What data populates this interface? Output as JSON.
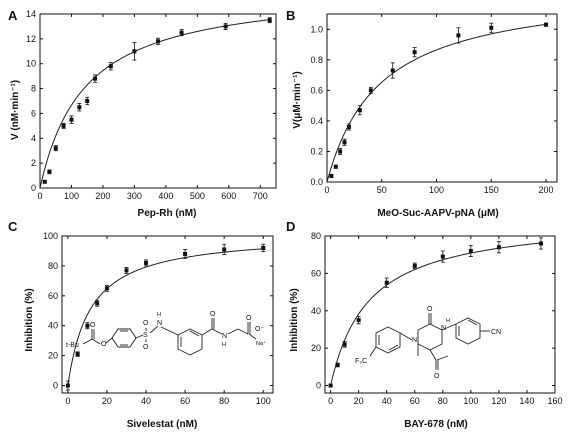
{
  "chart_data": [
    {
      "id": "A",
      "panel_label": "A",
      "type": "scatter",
      "xlabel": "Pep-Rh (nM)",
      "ylabel": "V (nM·min⁻¹)",
      "xlim": [
        0,
        750
      ],
      "ylim": [
        0,
        14
      ],
      "xticks": [
        0,
        100,
        200,
        300,
        400,
        500,
        600,
        700
      ],
      "yticks": [
        0,
        2,
        4,
        6,
        8,
        10,
        12,
        14
      ],
      "fit": {
        "vmax": 16.2,
        "km": 143
      },
      "points": [
        {
          "x": 15,
          "y": 0.5,
          "err": 0.1
        },
        {
          "x": 30,
          "y": 1.3,
          "err": 0.15
        },
        {
          "x": 50,
          "y": 3.2,
          "err": 0.2
        },
        {
          "x": 75,
          "y": 5.0,
          "err": 0.2
        },
        {
          "x": 100,
          "y": 5.5,
          "err": 0.3
        },
        {
          "x": 125,
          "y": 6.5,
          "err": 0.3
        },
        {
          "x": 150,
          "y": 7.0,
          "err": 0.3
        },
        {
          "x": 175,
          "y": 8.8,
          "err": 0.3
        },
        {
          "x": 225,
          "y": 9.8,
          "err": 0.3
        },
        {
          "x": 300,
          "y": 11.0,
          "err": 0.7
        },
        {
          "x": 375,
          "y": 11.8,
          "err": 0.25
        },
        {
          "x": 450,
          "y": 12.5,
          "err": 0.25
        },
        {
          "x": 590,
          "y": 13.0,
          "err": 0.25
        },
        {
          "x": 730,
          "y": 13.5,
          "err": 0.2
        }
      ]
    },
    {
      "id": "B",
      "panel_label": "B",
      "type": "scatter",
      "xlabel": "MeO-Suc-AAPV-pNA (μM)",
      "ylabel": "V(μM·min⁻¹)",
      "xlim": [
        0,
        210
      ],
      "ylim": [
        0,
        1.1
      ],
      "xticks": [
        0,
        50,
        100,
        150,
        200
      ],
      "yticks": [
        0.0,
        0.2,
        0.4,
        0.6,
        0.8,
        1.0
      ],
      "ytick_labels": [
        "0.0",
        "0.2",
        "0.4",
        "0.6",
        "0.8",
        "1.0"
      ],
      "fit": {
        "vmax": 1.28,
        "km": 48
      },
      "points": [
        {
          "x": 4,
          "y": 0.04,
          "err": 0.01
        },
        {
          "x": 8,
          "y": 0.1,
          "err": 0.01
        },
        {
          "x": 12,
          "y": 0.2,
          "err": 0.02
        },
        {
          "x": 16,
          "y": 0.26,
          "err": 0.02
        },
        {
          "x": 20,
          "y": 0.36,
          "err": 0.02
        },
        {
          "x": 30,
          "y": 0.47,
          "err": 0.03
        },
        {
          "x": 40,
          "y": 0.6,
          "err": 0.02
        },
        {
          "x": 60,
          "y": 0.73,
          "err": 0.05
        },
        {
          "x": 80,
          "y": 0.85,
          "err": 0.03
        },
        {
          "x": 120,
          "y": 0.96,
          "err": 0.05
        },
        {
          "x": 150,
          "y": 1.01,
          "err": 0.03
        },
        {
          "x": 200,
          "y": 1.03,
          "err": 0.01
        }
      ]
    },
    {
      "id": "C",
      "panel_label": "C",
      "type": "scatter",
      "xlabel": "Sivelestat (nM)",
      "ylabel": "Inhibition (%)",
      "xlim": [
        -3,
        105
      ],
      "ylim": [
        -5,
        100
      ],
      "xticks": [
        0,
        20,
        40,
        60,
        80,
        100
      ],
      "yticks": [
        0,
        20,
        40,
        60,
        80,
        100
      ],
      "fit": {
        "imax": 102,
        "ic50": 11.5
      },
      "points": [
        {
          "x": 0,
          "y": 0,
          "err": 3
        },
        {
          "x": 5,
          "y": 21,
          "err": 1.5
        },
        {
          "x": 10,
          "y": 40,
          "err": 2
        },
        {
          "x": 15,
          "y": 55,
          "err": 2
        },
        {
          "x": 20,
          "y": 65,
          "err": 2
        },
        {
          "x": 30,
          "y": 77,
          "err": 2
        },
        {
          "x": 40,
          "y": 82,
          "err": 2
        },
        {
          "x": 60,
          "y": 88,
          "err": 3
        },
        {
          "x": 80,
          "y": 91,
          "err": 3.5
        },
        {
          "x": 100,
          "y": 92,
          "err": 2.5
        }
      ],
      "structure_labels": {
        "tbu": "t-Bu",
        "s": "S",
        "o_top": "O",
        "o_bot": "O",
        "o_ester": "O",
        "o_ester2": "O",
        "nh1": "H",
        "n1": "N",
        "nh2": "N",
        "h2": "H",
        "o_amide": "O",
        "o_acid": "O",
        "o_minus": "O⁻",
        "na": "Na⁺"
      }
    },
    {
      "id": "D",
      "panel_label": "D",
      "type": "scatter",
      "xlabel": "BAY-678 (nM)",
      "ylabel": "Inhibition (%)",
      "xlim": [
        -4,
        160
      ],
      "ylim": [
        -4,
        80
      ],
      "xticks": [
        0,
        20,
        40,
        60,
        80,
        100,
        120,
        140,
        160
      ],
      "yticks": [
        0,
        20,
        40,
        60,
        80
      ],
      "fit": {
        "imax": 90,
        "ic50": 27
      },
      "points": [
        {
          "x": 0,
          "y": 0,
          "err": 0.5
        },
        {
          "x": 5,
          "y": 11,
          "err": 1
        },
        {
          "x": 10,
          "y": 22,
          "err": 1.5
        },
        {
          "x": 20,
          "y": 35,
          "err": 2
        },
        {
          "x": 40,
          "y": 55,
          "err": 2.5
        },
        {
          "x": 60,
          "y": 64,
          "err": 1.5
        },
        {
          "x": 80,
          "y": 69,
          "err": 3
        },
        {
          "x": 100,
          "y": 72,
          "err": 3
        },
        {
          "x": 120,
          "y": 74,
          "err": 3
        },
        {
          "x": 150,
          "y": 76,
          "err": 3
        }
      ],
      "structure_labels": {
        "o_top": "O",
        "n_top": "N",
        "h": "H",
        "n_left": "N",
        "cf3": "F₃C",
        "cn": "CN",
        "o_ketone": "O"
      }
    }
  ]
}
